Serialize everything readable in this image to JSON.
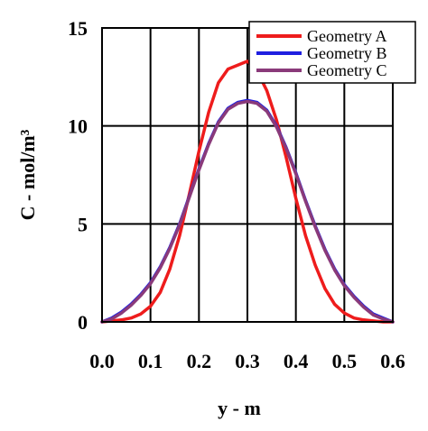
{
  "chart_data": {
    "type": "line",
    "title": "",
    "xlabel": "y - m",
    "ylabel": "C - mol/m³",
    "xlim": [
      0.0,
      0.6
    ],
    "ylim": [
      0,
      15
    ],
    "x_ticks": [
      "0.0",
      "0.1",
      "0.2",
      "0.3",
      "0.4",
      "0.5",
      "0.6"
    ],
    "y_ticks": [
      "0",
      "5",
      "10",
      "15"
    ],
    "grid": true,
    "legend_position": "top-right",
    "x": [
      0.0,
      0.02,
      0.04,
      0.06,
      0.08,
      0.1,
      0.12,
      0.14,
      0.16,
      0.18,
      0.2,
      0.22,
      0.24,
      0.26,
      0.28,
      0.3,
      0.32,
      0.34,
      0.36,
      0.38,
      0.4,
      0.42,
      0.44,
      0.46,
      0.48,
      0.5,
      0.52,
      0.54,
      0.56,
      0.58,
      0.6
    ],
    "series": [
      {
        "name": "Geometry A",
        "color": "#ee1c1c",
        "values": [
          0.0,
          0.05,
          0.1,
          0.2,
          0.4,
          0.8,
          1.5,
          2.7,
          4.4,
          6.5,
          8.7,
          10.7,
          12.2,
          12.9,
          13.1,
          13.3,
          12.8,
          11.8,
          10.3,
          8.4,
          6.3,
          4.4,
          2.9,
          1.7,
          0.9,
          0.45,
          0.2,
          0.1,
          0.05,
          0.0,
          0.0
        ]
      },
      {
        "name": "Geometry B",
        "color": "#1f1fe0",
        "values": [
          0.0,
          0.2,
          0.5,
          0.9,
          1.4,
          2.0,
          2.8,
          3.8,
          5.0,
          6.4,
          7.8,
          9.1,
          10.2,
          10.9,
          11.2,
          11.3,
          11.2,
          10.8,
          10.0,
          8.9,
          7.6,
          6.2,
          4.9,
          3.7,
          2.7,
          1.9,
          1.3,
          0.8,
          0.4,
          0.2,
          0.0
        ]
      },
      {
        "name": "Geometry C",
        "color": "#8a3a7a",
        "values": [
          0.0,
          0.15,
          0.45,
          0.85,
          1.35,
          1.95,
          2.75,
          3.75,
          4.95,
          6.35,
          7.75,
          9.05,
          10.15,
          10.85,
          11.15,
          11.25,
          11.15,
          10.75,
          9.95,
          8.85,
          7.55,
          6.15,
          4.85,
          3.65,
          2.65,
          1.85,
          1.25,
          0.75,
          0.35,
          0.15,
          0.0
        ]
      }
    ]
  }
}
